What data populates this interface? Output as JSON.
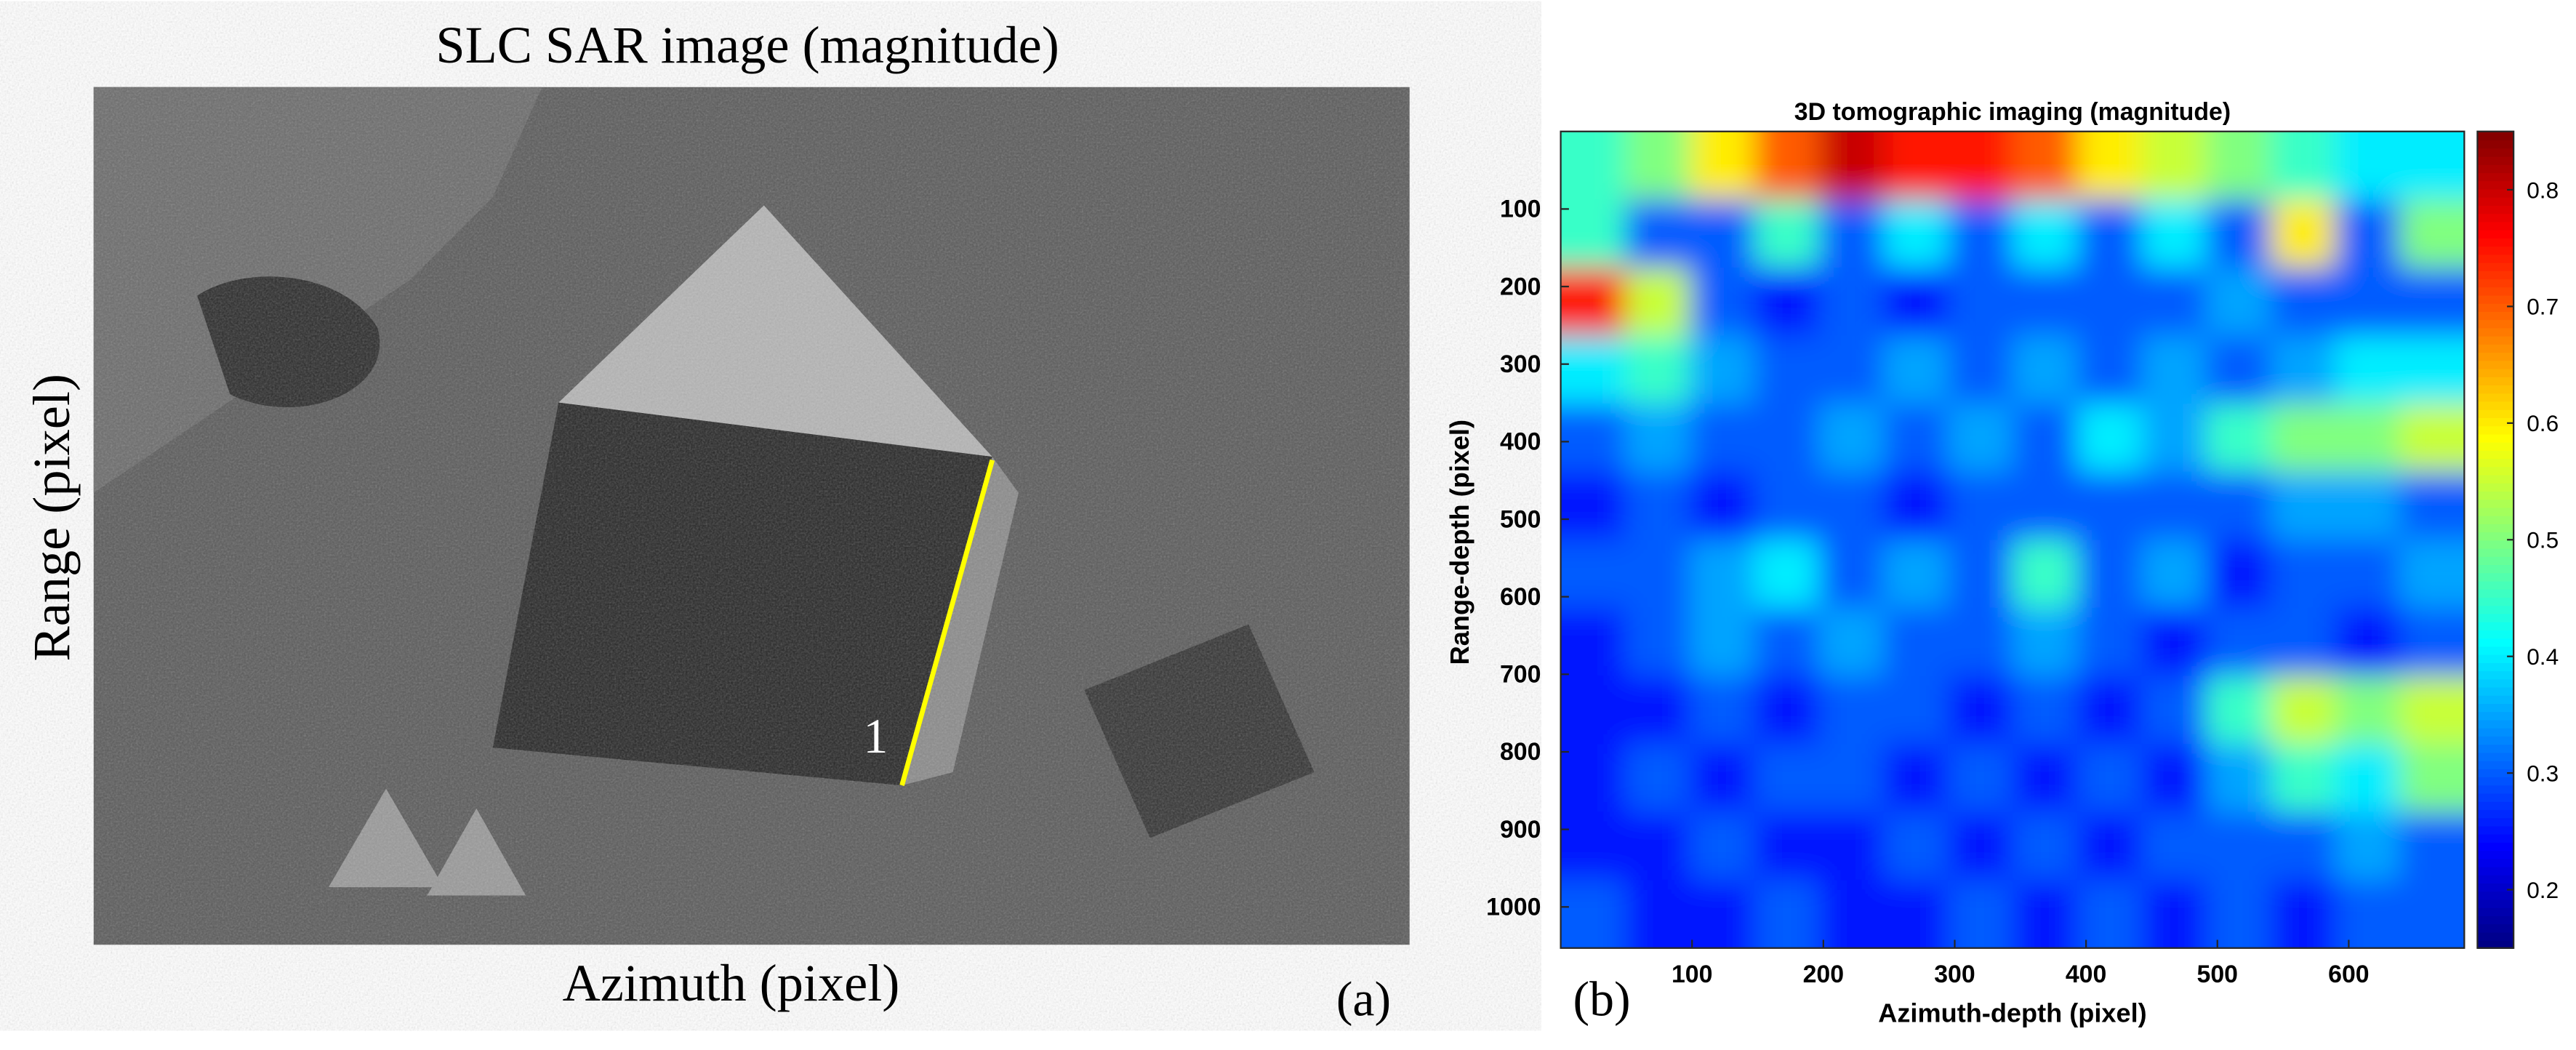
{
  "chart_data": [
    {
      "type": "image",
      "title": "SLC SAR image (magnitude)",
      "xlabel": "Azimuth (pixel)",
      "ylabel": "Range (pixel)",
      "annotation": "1",
      "panel_label": "(a)"
    },
    {
      "type": "heatmap",
      "title": "3D tomographic imaging (magnitude)",
      "xlabel": "Azimuth-depth (pixel)",
      "ylabel": "Range-depth (pixel)",
      "panel_label": "(b)",
      "colormap": "jet",
      "xlim": [
        0,
        688
      ],
      "ylim": [
        0,
        1053
      ],
      "y_inverted": true,
      "xticks": [
        100,
        200,
        300,
        400,
        500,
        600
      ],
      "yticks": [
        100,
        200,
        300,
        400,
        500,
        600,
        700,
        800,
        900,
        1000
      ],
      "clim": [
        0.15,
        0.85
      ],
      "cticks": [
        0.2,
        0.3,
        0.4,
        0.5,
        0.6,
        0.7,
        0.8
      ],
      "z": [
        [
          0.45,
          0.5,
          0.6,
          0.7,
          0.8,
          0.75,
          0.75,
          0.7,
          0.6,
          0.55,
          0.5,
          0.45,
          0.4,
          0.4
        ],
        [
          0.45,
          0.3,
          0.3,
          0.45,
          0.3,
          0.4,
          0.3,
          0.4,
          0.3,
          0.4,
          0.3,
          0.6,
          0.3,
          0.5
        ],
        [
          0.75,
          0.55,
          0.3,
          0.25,
          0.3,
          0.25,
          0.3,
          0.3,
          0.3,
          0.3,
          0.35,
          0.3,
          0.3,
          0.3
        ],
        [
          0.4,
          0.45,
          0.35,
          0.3,
          0.3,
          0.35,
          0.3,
          0.35,
          0.3,
          0.35,
          0.3,
          0.35,
          0.4,
          0.4
        ],
        [
          0.3,
          0.35,
          0.3,
          0.3,
          0.35,
          0.3,
          0.35,
          0.3,
          0.4,
          0.35,
          0.45,
          0.5,
          0.5,
          0.55
        ],
        [
          0.25,
          0.3,
          0.25,
          0.3,
          0.3,
          0.25,
          0.3,
          0.3,
          0.3,
          0.3,
          0.3,
          0.35,
          0.35,
          0.3
        ],
        [
          0.3,
          0.3,
          0.35,
          0.4,
          0.3,
          0.35,
          0.3,
          0.45,
          0.3,
          0.35,
          0.25,
          0.3,
          0.3,
          0.35
        ],
        [
          0.25,
          0.3,
          0.35,
          0.3,
          0.35,
          0.3,
          0.3,
          0.35,
          0.3,
          0.25,
          0.3,
          0.3,
          0.25,
          0.3
        ],
        [
          0.25,
          0.25,
          0.3,
          0.25,
          0.3,
          0.3,
          0.25,
          0.3,
          0.25,
          0.3,
          0.45,
          0.55,
          0.5,
          0.55
        ],
        [
          0.25,
          0.3,
          0.25,
          0.3,
          0.3,
          0.25,
          0.3,
          0.25,
          0.3,
          0.25,
          0.35,
          0.45,
          0.4,
          0.5
        ],
        [
          0.25,
          0.25,
          0.3,
          0.25,
          0.25,
          0.3,
          0.25,
          0.3,
          0.25,
          0.3,
          0.3,
          0.3,
          0.35,
          0.3
        ],
        [
          0.3,
          0.25,
          0.25,
          0.3,
          0.25,
          0.25,
          0.3,
          0.25,
          0.3,
          0.25,
          0.3,
          0.25,
          0.3,
          0.3
        ]
      ]
    }
  ]
}
